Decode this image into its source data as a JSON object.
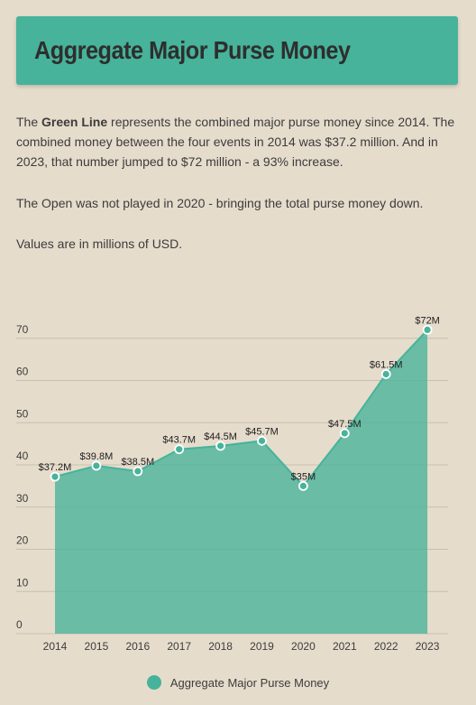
{
  "header": {
    "title": "Aggregate Major Purse Money"
  },
  "description": {
    "p1_bold": "Green Line",
    "p1_pre": "The ",
    "p1_post": " represents the combined major purse money since 2014. The combined money between the four events in 2014 was $37.2 million. And in 2023, that number jumped to $72 million - a 93% increase.",
    "p2": "The Open was not played in 2020 - bringing the total purse money down.",
    "p3": "Values are in millions of USD."
  },
  "colors": {
    "area": "#46b39a",
    "background": "#e6dccc",
    "gridline": "#c8bfb1"
  },
  "chart_data": {
    "type": "area",
    "categories": [
      "2014",
      "2015",
      "2016",
      "2017",
      "2018",
      "2019",
      "2020",
      "2021",
      "2022",
      "2023"
    ],
    "series": [
      {
        "name": "Aggregate Major Purse Money",
        "values": [
          37.2,
          39.8,
          38.5,
          43.7,
          44.5,
          45.7,
          35,
          47.5,
          61.5,
          72
        ],
        "labels": [
          "$37.2M",
          "$39.8M",
          "$38.5M",
          "$43.7M",
          "$44.5M",
          "$45.7M",
          "$35M",
          "$47.5M",
          "$61.5M",
          "$72M"
        ]
      }
    ],
    "yticks": [
      0,
      10,
      20,
      30,
      40,
      50,
      60,
      70
    ],
    "ylim": [
      0,
      72
    ],
    "grid": true,
    "legend": "bottom"
  }
}
